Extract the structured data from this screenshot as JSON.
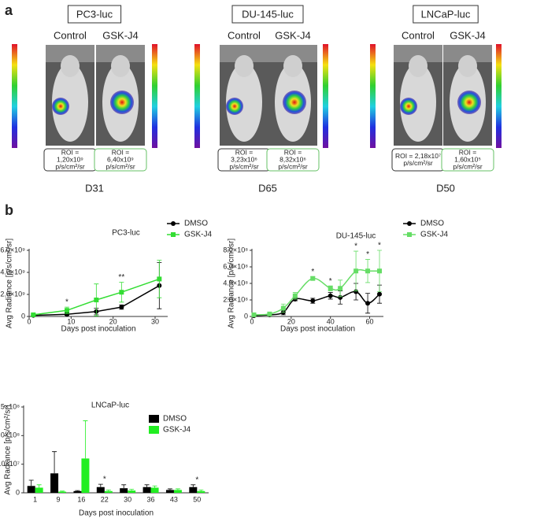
{
  "panel_a": {
    "label": "a",
    "groups": [
      {
        "title": "PC3-luc",
        "control": "Control",
        "treated": "GSK-J4",
        "roi_control": [
          "ROI =",
          "1,20x10⁹",
          "p/s/cm²/sr"
        ],
        "roi_treated": [
          "ROI =",
          "6,40x10⁹",
          "p/s/cm²/sr"
        ],
        "day": "D31"
      },
      {
        "title": "DU-145-luc",
        "control": "Control",
        "treated": "GSK-J4",
        "roi_control": [
          "ROI =",
          "3,23x10⁶",
          "p/s/cm²/sr"
        ],
        "roi_treated": [
          "ROI =",
          "8,32x10⁶",
          "p/s/cm²/sr"
        ],
        "day": "D65"
      },
      {
        "title": "LNCaP-luc",
        "control": "Control",
        "treated": "GSK-J4",
        "roi_control": [
          "ROI = 2,18x10⁷",
          "p/s/cm²/sr"
        ],
        "roi_treated": [
          "ROI =",
          "1,60x10⁵",
          "p/s/cm²/sr"
        ],
        "day": "D50"
      }
    ]
  },
  "panel_b_label": "b",
  "chart_data": [
    {
      "type": "line",
      "title": "PC3-luc",
      "xlabel": "Days post inoculation",
      "ylabel": "Avg Radiance [p/s/cm²/sr]",
      "x": [
        1,
        9,
        16,
        22,
        31
      ],
      "xlim": [
        0,
        33
      ],
      "xticks": [
        0,
        10,
        20,
        30
      ],
      "ylim": [
        0,
        6000000000
      ],
      "yticks": [
        0,
        {
          "value": 2000000000,
          "label": "2.0×10⁹"
        },
        {
          "value": 4000000000,
          "label": "4.0×10⁹"
        },
        {
          "value": 6000000000,
          "label": "6.0×10⁹"
        }
      ],
      "series": [
        {
          "name": "DMSO",
          "color": "#000000",
          "marker": "circle",
          "values": [
            100000000,
            200000000,
            450000000,
            850000000,
            2800000000
          ],
          "errors": [
            50000000,
            100000000,
            300000000,
            200000000,
            2100000000
          ]
        },
        {
          "name": "GSK-J4",
          "color": "#33dd33",
          "marker": "square",
          "values": [
            150000000,
            550000000,
            1500000000,
            2200000000,
            3400000000
          ],
          "errors": [
            100000000,
            300000000,
            1450000000,
            900000000,
            1700000000
          ]
        }
      ],
      "annotations": [
        {
          "text": "*",
          "x": 9
        },
        {
          "text": "**",
          "x": 22
        }
      ]
    },
    {
      "type": "line",
      "smooth": true,
      "title": "DU-145-luc",
      "xlabel": "Days post inoculation",
      "ylabel": "Avg Radiance [p/s/cm²/sr]",
      "x": [
        1,
        9,
        16,
        22,
        31,
        40,
        45,
        53,
        59,
        65
      ],
      "xlim": [
        0,
        67
      ],
      "xticks": [
        0,
        20,
        40,
        60
      ],
      "ylim": [
        0,
        800000000
      ],
      "yticks": [
        0,
        {
          "value": 200000000,
          "label": "2.0×10⁸"
        },
        {
          "value": 400000000,
          "label": "4.0×10⁸"
        },
        {
          "value": 600000000,
          "label": "6.0×10⁸"
        },
        {
          "value": 800000000,
          "label": "8.0×10⁸"
        }
      ],
      "series": [
        {
          "name": "DMSO",
          "color": "#000000",
          "marker": "circle",
          "values": [
            10000000,
            20000000,
            50000000,
            210000000,
            190000000,
            250000000,
            230000000,
            300000000,
            160000000,
            270000000
          ],
          "errors": [
            5000000,
            10000000,
            30000000,
            20000000,
            30000000,
            40000000,
            80000000,
            100000000,
            120000000,
            110000000
          ]
        },
        {
          "name": "GSK-J4",
          "color": "#66dd66",
          "marker": "square",
          "values": [
            20000000,
            30000000,
            100000000,
            250000000,
            460000000,
            340000000,
            340000000,
            550000000,
            550000000,
            550000000
          ],
          "errors": [
            10000000,
            20000000,
            50000000,
            40000000,
            20000000,
            30000000,
            100000000,
            240000000,
            140000000,
            250000000
          ]
        }
      ],
      "annotations": [
        {
          "text": "*",
          "x": 31
        },
        {
          "text": "*",
          "x": 40
        },
        {
          "text": "*",
          "x": 53
        },
        {
          "text": "*",
          "x": 59
        },
        {
          "text": "*",
          "x": 65
        }
      ]
    },
    {
      "type": "bar",
      "title": "LNCaP-luc",
      "xlabel": "Days post inoculation",
      "ylabel": "Avg Radiance [p/s/cm²/sr]",
      "categories": [
        "1",
        "9",
        "16",
        "22",
        "30",
        "36",
        "43",
        "50"
      ],
      "ylim": [
        0,
        150000000
      ],
      "yticks": [
        0,
        {
          "value": 50000000,
          "label": "5.0×10⁷"
        },
        {
          "value": 100000000,
          "label": "1.0×10⁸"
        },
        {
          "value": 150000000,
          "label": "1.5×10⁸"
        }
      ],
      "series": [
        {
          "name": "DMSO",
          "color": "#000000",
          "values": [
            12000000,
            34000000,
            3000000,
            10000000,
            8000000,
            10000000,
            5000000,
            10000000
          ],
          "errors": [
            10000000,
            38000000,
            1000000,
            5000000,
            6000000,
            4000000,
            2000000,
            4000000
          ]
        },
        {
          "name": "GSK-J4",
          "color": "#22ee22",
          "values": [
            9000000,
            2000000,
            60000000,
            3000000,
            4000000,
            9000000,
            5000000,
            3000000
          ],
          "errors": [
            5000000,
            1000000,
            66000000,
            2000000,
            2000000,
            3000000,
            2000000,
            2000000
          ]
        }
      ],
      "annotations": [
        {
          "text": "*",
          "category": "22"
        },
        {
          "text": "*",
          "category": "50"
        }
      ]
    }
  ]
}
